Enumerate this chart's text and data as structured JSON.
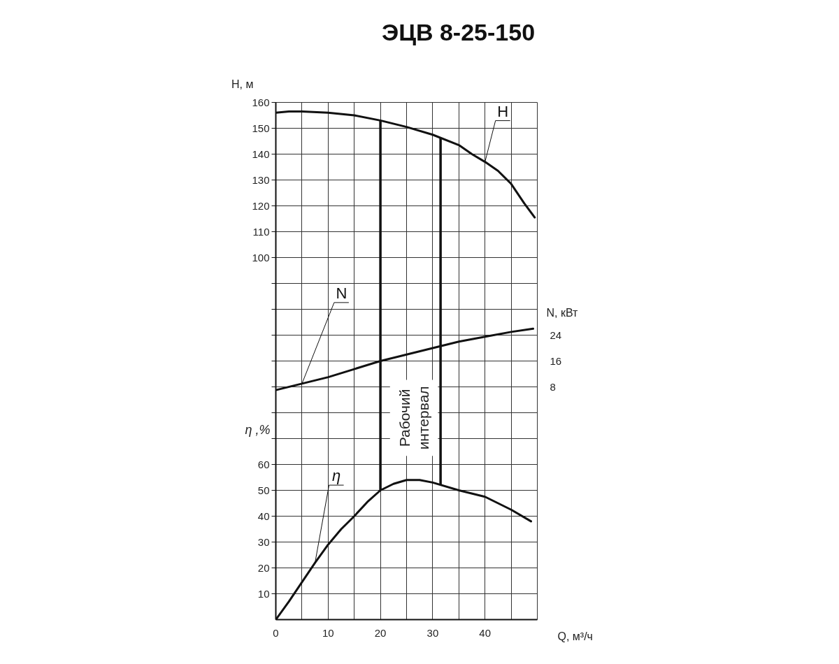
{
  "chart_data": {
    "type": "line",
    "title": "ЭЦВ 8-25-150",
    "xlabel": "Q, м³/ч",
    "ylabel": "H, м",
    "y2label": "N, кВт",
    "y3label": "η ,%",
    "xlim": [
      0,
      50
    ],
    "xticks": [
      0,
      {
        "value": 5,
        "label": null
      },
      10,
      {
        "value": 15,
        "label": null
      },
      20,
      {
        "value": 25,
        "label": null
      },
      30,
      {
        "value": 35,
        "label": null
      },
      40,
      {
        "value": 45,
        "label": null
      }
    ],
    "ylim": [
      -40,
      160
    ],
    "yticks": [
      {
        "value": 30,
        "label": null
      },
      {
        "value": 40,
        "label": null
      },
      {
        "value": 50,
        "label": null
      },
      {
        "value": 60,
        "label": null
      },
      {
        "value": 70,
        "label": null
      },
      {
        "value": 80,
        "label": null
      },
      {
        "value": 90,
        "label": null
      },
      100,
      110,
      120,
      130,
      140,
      150,
      160
    ],
    "y2lim": [
      -64,
      96
    ],
    "y2ticks": [
      8,
      16,
      24
    ],
    "y3lim": [
      0,
      200
    ],
    "y3ticks": [
      10,
      20,
      30,
      40,
      50,
      60
    ],
    "grid": true,
    "series": [
      {
        "name": "H",
        "color": "#111111",
        "x": [
          0,
          2.5,
          5,
          10,
          15,
          20,
          25,
          30,
          35,
          37.5,
          40,
          42.5,
          45,
          47.5,
          49.5
        ],
        "values": [
          156,
          156.5,
          156.5,
          156,
          155,
          153,
          150.5,
          147.5,
          143.5,
          140,
          137,
          133.5,
          128.5,
          121,
          115.5
        ]
      },
      {
        "name": "N",
        "color": "#111111",
        "axis": "y2",
        "x": [
          0,
          5,
          10,
          15,
          20,
          25,
          30,
          35,
          40,
          45,
          49.2
        ],
        "values": [
          7,
          9,
          11,
          13.5,
          16,
          18,
          20,
          22,
          23.5,
          25,
          26
        ]
      },
      {
        "name": "η",
        "color": "#111111",
        "axis": "y3",
        "x": [
          0,
          2.5,
          5,
          7.5,
          10,
          12.5,
          15,
          17.5,
          20,
          22.5,
          25,
          27.5,
          30,
          35,
          40,
          45,
          48.8
        ],
        "values": [
          0,
          7,
          14.5,
          22,
          29,
          35,
          40,
          45.5,
          50,
          52.5,
          54,
          54,
          53,
          50,
          47.5,
          42.5,
          38
        ]
      }
    ],
    "ref_lines": [
      {
        "axis": "x",
        "value": 20,
        "label": "Рабочий\nинтервал"
      },
      {
        "axis": "x",
        "value": 31.5
      }
    ]
  }
}
